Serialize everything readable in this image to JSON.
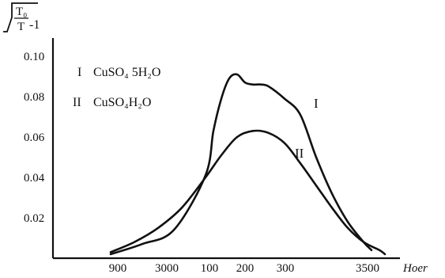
{
  "chart_data": {
    "type": "line",
    "ylabel_expr": {
      "num": "T₀",
      "den": "T",
      "suffix": "-1"
    },
    "xlabel": "Hoer",
    "x_ticks": [
      "900",
      "3000",
      "100",
      "200",
      "300",
      "3500"
    ],
    "y_ticks": [
      "0.10",
      "0.08",
      "0.06",
      "0.04",
      "0.02"
    ],
    "ylim": [
      0,
      0.11
    ],
    "legend": [
      {
        "mark": "I",
        "text": "CuSO₄ 5H₂O"
      },
      {
        "mark": "II",
        "text": "CuSO₄H₂O"
      }
    ],
    "series": [
      {
        "name": "I",
        "x": [
          140,
          180,
          220,
          260,
          270,
          280,
          290,
          300,
          310,
          320,
          330,
          340,
          360,
          380,
          400,
          420,
          440,
          460,
          470
        ],
        "y": [
          0.002,
          0.007,
          0.014,
          0.041,
          0.063,
          0.079,
          0.089,
          0.091,
          0.087,
          0.086,
          0.086,
          0.085,
          0.079,
          0.071,
          0.05,
          0.032,
          0.018,
          0.008,
          0.004
        ]
      },
      {
        "name": "II",
        "x": [
          140,
          170,
          200,
          230,
          260,
          280,
          300,
          320,
          340,
          360,
          380,
          400,
          420,
          440,
          460,
          480,
          487
        ],
        "y": [
          0.003,
          0.008,
          0.015,
          0.025,
          0.04,
          0.051,
          0.06,
          0.063,
          0.062,
          0.057,
          0.047,
          0.036,
          0.025,
          0.015,
          0.008,
          0.004,
          0.002
        ]
      }
    ]
  }
}
